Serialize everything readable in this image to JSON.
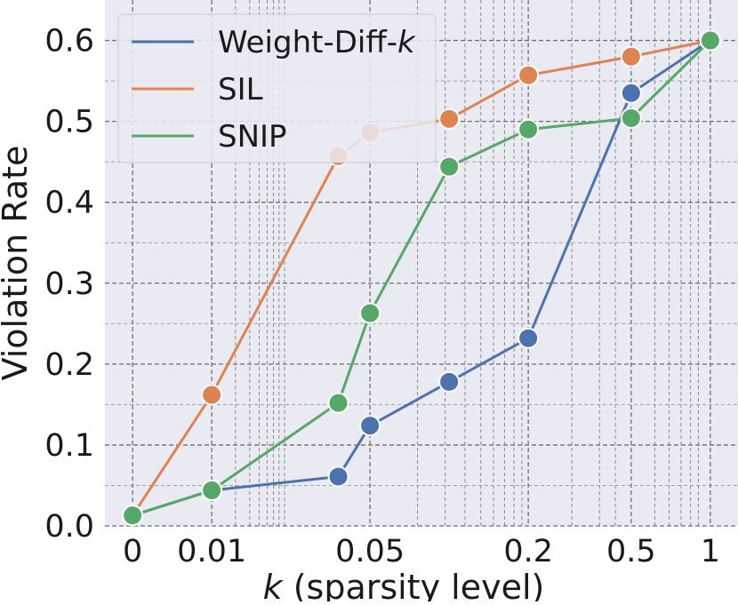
{
  "chart_data": {
    "type": "line",
    "title": "",
    "xlabel": "k (sparsity level)",
    "xlabel_var": "k",
    "xlabel_rest": " (sparsity level)",
    "ylabel": "Violation Rate",
    "x_tick_labels": [
      "0",
      "0.01",
      "0.05",
      "0.2",
      "0.5",
      "1"
    ],
    "x_tick_positions": [
      0,
      1,
      3,
      5,
      6.3,
      7.3
    ],
    "ylim": [
      0.0,
      0.65
    ],
    "y_ticks": [
      0.0,
      0.1,
      0.2,
      0.3,
      0.4,
      0.5,
      0.6
    ],
    "y_tick_labels": [
      "0.0",
      "0.1",
      "0.2",
      "0.3",
      "0.4",
      "0.5",
      "0.6"
    ],
    "grid": true,
    "legend_position": "top-left",
    "series": [
      {
        "name": "Weight-Diff-k",
        "legend_prefix": "Weight-Diff-",
        "legend_var": "k",
        "color": "#4c72b0",
        "points": [
          {
            "x": 0,
            "y": 0.013
          },
          {
            "x": 1,
            "y": 0.044
          },
          {
            "x": 2.6,
            "y": 0.061
          },
          {
            "x": 3,
            "y": 0.124
          },
          {
            "x": 4,
            "y": 0.178
          },
          {
            "x": 5,
            "y": 0.232
          },
          {
            "x": 6.3,
            "y": 0.535
          },
          {
            "x": 7.3,
            "y": 0.6
          }
        ]
      },
      {
        "name": "SIL",
        "legend_prefix": "SIL",
        "legend_var": "",
        "color": "#dd8452",
        "points": [
          {
            "x": 0,
            "y": 0.013
          },
          {
            "x": 1,
            "y": 0.162
          },
          {
            "x": 2.6,
            "y": 0.457
          },
          {
            "x": 3,
            "y": 0.486
          },
          {
            "x": 4,
            "y": 0.503
          },
          {
            "x": 5,
            "y": 0.557
          },
          {
            "x": 6.3,
            "y": 0.58
          },
          {
            "x": 7.3,
            "y": 0.6
          }
        ]
      },
      {
        "name": "SNIP",
        "legend_prefix": "SNIP",
        "legend_var": "",
        "color": "#55a868",
        "points": [
          {
            "x": 0,
            "y": 0.013
          },
          {
            "x": 1,
            "y": 0.044
          },
          {
            "x": 2.6,
            "y": 0.152
          },
          {
            "x": 3,
            "y": 0.263
          },
          {
            "x": 4,
            "y": 0.444
          },
          {
            "x": 5,
            "y": 0.49
          },
          {
            "x": 6.3,
            "y": 0.504
          },
          {
            "x": 7.3,
            "y": 0.6
          }
        ]
      }
    ]
  }
}
